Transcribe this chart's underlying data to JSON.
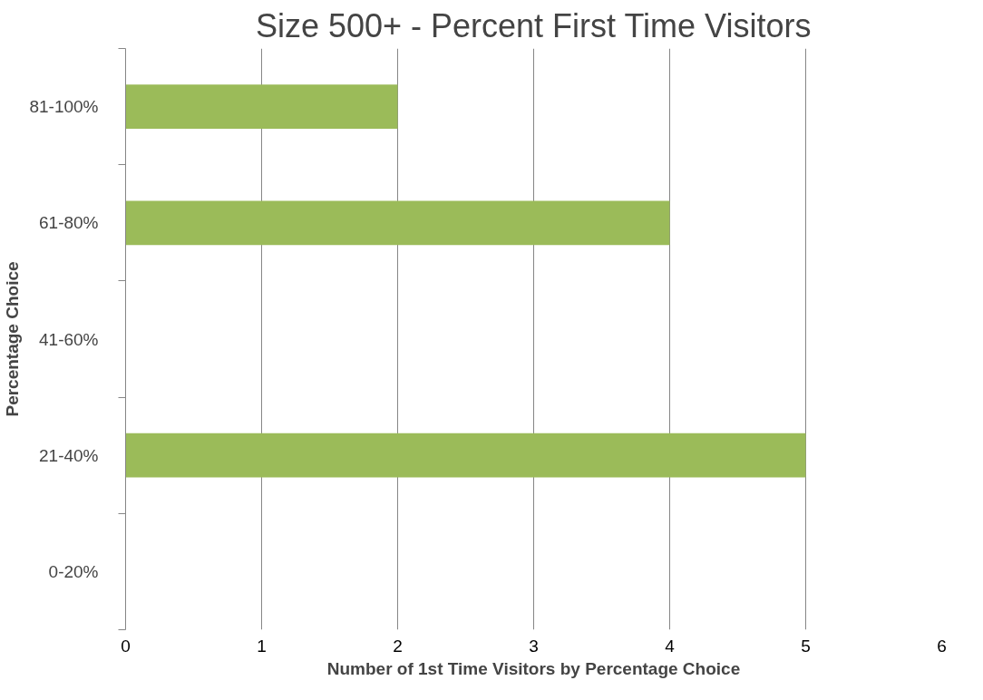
{
  "chart_data": {
    "type": "bar",
    "orientation": "horizontal",
    "title": "Size 500+ - Percent First Time Visitors",
    "xlabel": "Number of 1st Time Visitors by Percentage Choice",
    "ylabel": "Percentage Choice",
    "categories": [
      "81-100%",
      "61-80%",
      "41-60%",
      "21-40%",
      "0-20%"
    ],
    "series": [
      {
        "color": "#9bbb59",
        "values": [
          2,
          4,
          0,
          5,
          0
        ]
      }
    ],
    "xlim": [
      0,
      6
    ],
    "xticks": [
      0,
      1,
      2,
      3,
      4,
      5,
      6
    ],
    "grid": "x"
  }
}
